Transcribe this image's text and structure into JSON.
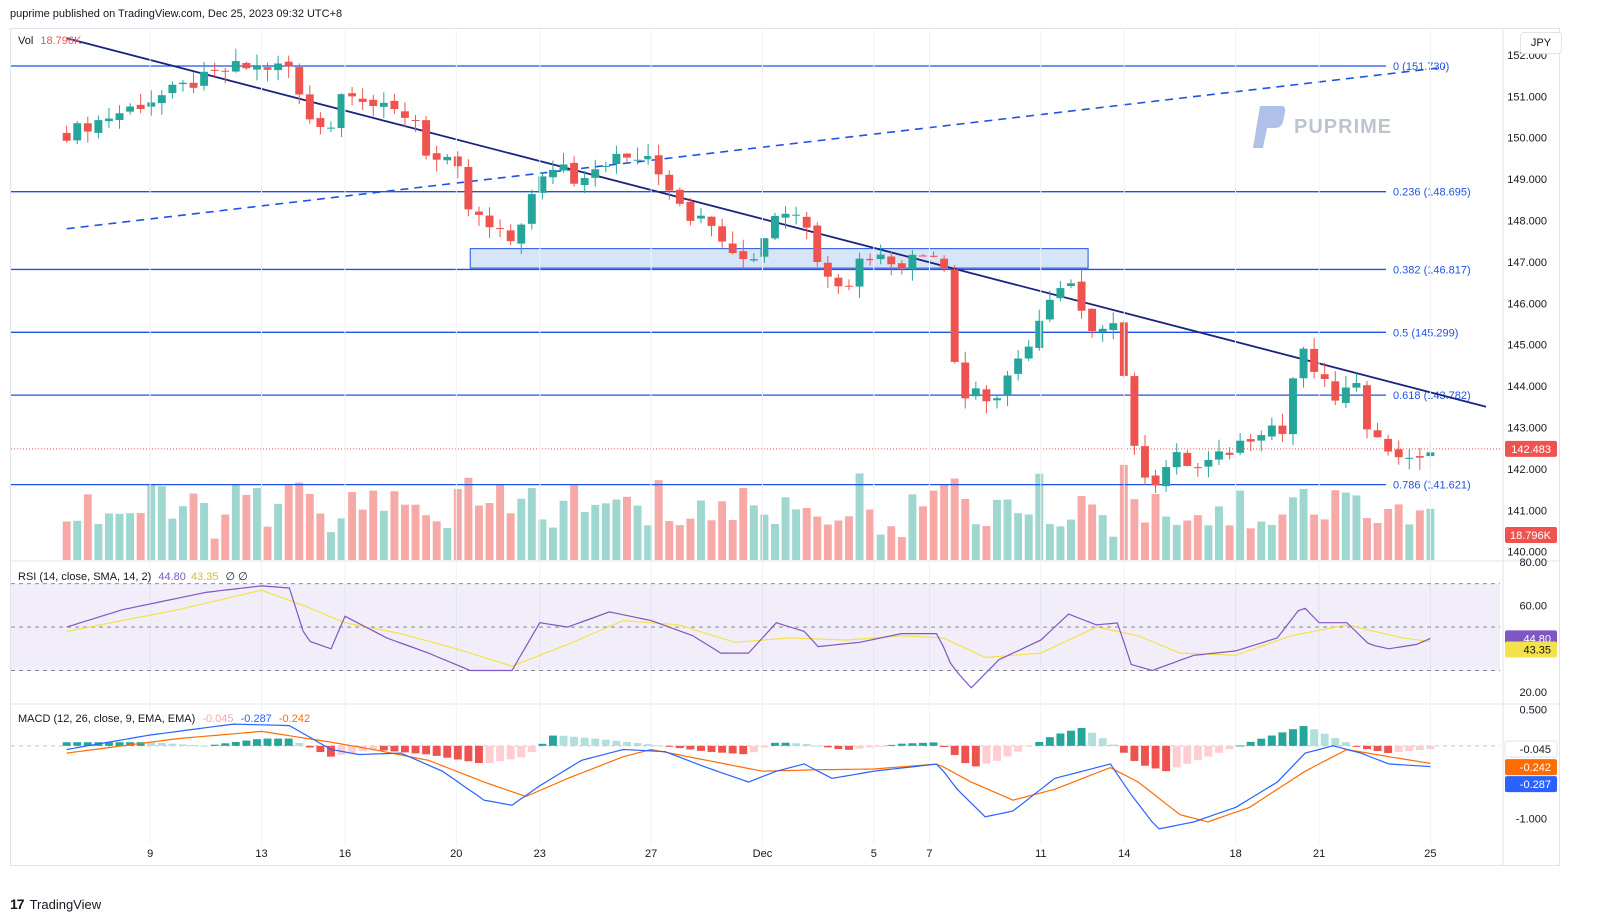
{
  "header": {
    "publisher_text": "puprime published on TradingView.com, Dec 25, 2023 09:32 UTC+8"
  },
  "currency_button": "JPY",
  "watermark": "PUPRIME",
  "footer": {
    "brand": "TradingView"
  },
  "colors": {
    "up": "#26a69a",
    "down": "#ef5350",
    "vol_up": "#9ed7d0",
    "vol_down": "#f7a9a7",
    "fib_line": "#1e53e5",
    "trendline": "#1a237e",
    "rsi": "#7e57c2",
    "rsi_sma": "#f5e14b",
    "macd": "#2962ff",
    "signal": "#ff6d00",
    "zone": "#bcd3f5"
  },
  "chart_data": [
    {
      "type": "candlestick",
      "symbol_currency": "JPY",
      "volume_legend": {
        "label": "Vol",
        "value": "18.796K"
      },
      "y_ticks": [
        "152.000",
        "151.000",
        "150.000",
        "149.000",
        "148.000",
        "147.000",
        "146.000",
        "145.000",
        "144.000",
        "143.000",
        "142.000",
        "141.000",
        "140.000"
      ],
      "ylim": [
        139.8,
        152.6
      ],
      "x_tick_labels": [
        {
          "label": "9",
          "day": 9
        },
        {
          "label": "13",
          "day": 13
        },
        {
          "label": "16",
          "day": 16
        },
        {
          "label": "20",
          "day": 20
        },
        {
          "label": "23",
          "day": 23
        },
        {
          "label": "27",
          "day": 27
        },
        {
          "label": "Dec",
          "day": 31
        },
        {
          "label": "5",
          "day": 35
        },
        {
          "label": "7",
          "day": 37
        },
        {
          "label": "11",
          "day": 41
        },
        {
          "label": "14",
          "day": 44
        },
        {
          "label": "18",
          "day": 48
        },
        {
          "label": "21",
          "day": 51
        },
        {
          "label": "25",
          "day": 55
        }
      ],
      "x_unit": "calendar day (Nov = 1-30, Dec 1 = 31)",
      "close_key_points": [
        {
          "day": 6,
          "close": 150.1
        },
        {
          "day": 12,
          "close": 151.7
        },
        {
          "day": 14,
          "close": 151.7
        },
        {
          "day": 14.6,
          "close": 150.5
        },
        {
          "day": 15.5,
          "close": 150.3
        },
        {
          "day": 16,
          "close": 151.3
        },
        {
          "day": 17.2,
          "close": 150.7
        },
        {
          "day": 18.5,
          "close": 150.5
        },
        {
          "day": 19,
          "close": 149.5
        },
        {
          "day": 20,
          "close": 149.3
        },
        {
          "day": 20.4,
          "close": 148.3
        },
        {
          "day": 21.2,
          "close": 147.8
        },
        {
          "day": 22,
          "close": 147.5
        },
        {
          "day": 22.8,
          "close": 148.7
        },
        {
          "day": 23.7,
          "close": 149.5
        },
        {
          "day": 24.2,
          "close": 149.0
        },
        {
          "day": 25.5,
          "close": 149.5
        },
        {
          "day": 26.8,
          "close": 149.5
        },
        {
          "day": 27.8,
          "close": 148.7
        },
        {
          "day": 28.4,
          "close": 148.1
        },
        {
          "day": 29,
          "close": 148.3
        },
        {
          "day": 29.6,
          "close": 147.3
        },
        {
          "day": 30,
          "close": 147.4
        },
        {
          "day": 30.5,
          "close": 147.1
        },
        {
          "day": 31,
          "close": 147.4
        },
        {
          "day": 31.4,
          "close": 148.2
        },
        {
          "day": 32.5,
          "close": 148.2
        },
        {
          "day": 32.8,
          "close": 147.1
        },
        {
          "day": 33.6,
          "close": 146.6
        },
        {
          "day": 34.1,
          "close": 146.5
        },
        {
          "day": 34.6,
          "close": 147.2
        },
        {
          "day": 36,
          "close": 147.0
        },
        {
          "day": 37.3,
          "close": 147.3
        },
        {
          "day": 37.6,
          "close": 146.8
        },
        {
          "day": 37.8,
          "close": 145.0
        },
        {
          "day": 38.5,
          "close": 143.2
        },
        {
          "day": 38.7,
          "close": 144.1
        },
        {
          "day": 39.2,
          "close": 143.5
        },
        {
          "day": 40,
          "close": 144.3
        },
        {
          "day": 40.8,
          "close": 145.4
        },
        {
          "day": 41.5,
          "close": 146.2
        },
        {
          "day": 42.1,
          "close": 146.4
        },
        {
          "day": 42.6,
          "close": 145.4
        },
        {
          "day": 43.5,
          "close": 145.6
        },
        {
          "day": 43.9,
          "close": 145.3
        },
        {
          "day": 44.1,
          "close": 143.0
        },
        {
          "day": 44.5,
          "close": 142.1
        },
        {
          "day": 45.1,
          "close": 141.7
        },
        {
          "day": 45.8,
          "close": 142.3
        },
        {
          "day": 46.6,
          "close": 142.0
        },
        {
          "day": 47.5,
          "close": 142.3
        },
        {
          "day": 48.5,
          "close": 142.8
        },
        {
          "day": 49.2,
          "close": 143.1
        },
        {
          "day": 49.8,
          "close": 142.8
        },
        {
          "day": 50.1,
          "close": 144.4
        },
        {
          "day": 50.4,
          "close": 144.8
        },
        {
          "day": 51.1,
          "close": 144.1
        },
        {
          "day": 51.5,
          "close": 143.7
        },
        {
          "day": 52.3,
          "close": 144.0
        },
        {
          "day": 52.7,
          "close": 143.1
        },
        {
          "day": 53.2,
          "close": 142.9
        },
        {
          "day": 53.5,
          "close": 142.3
        },
        {
          "day": 54.2,
          "close": 142.4
        },
        {
          "day": 54.6,
          "close": 142.1
        },
        {
          "day": 55,
          "close": 142.48
        }
      ],
      "last_price": "142.483",
      "last_volume": "18.796K",
      "fibonacci": [
        {
          "level": "0",
          "price": 151.73,
          "label": "0 (151.730)"
        },
        {
          "level": "0.236",
          "price": 148.695,
          "label": "0.236 (148.695)"
        },
        {
          "level": "0.382",
          "price": 146.817,
          "label": "0.382 (146.817)"
        },
        {
          "level": "0.5",
          "price": 145.299,
          "label": "0.5 (145.299)"
        },
        {
          "level": "0.618",
          "price": 143.782,
          "label": "0.618 (143.782)"
        },
        {
          "level": "0.786",
          "price": 141.621,
          "label": "0.786 (141.621)"
        }
      ],
      "descending_trendline": [
        {
          "day": 6,
          "price": 152.4
        },
        {
          "day": 57,
          "price": 143.5
        }
      ],
      "dashed_trendline": [
        {
          "day": 6,
          "price": 147.8
        },
        {
          "day": 55.5,
          "price": 151.7
        }
      ],
      "zone": {
        "day_start": 20.5,
        "day_end": 42.7,
        "price_low": 146.85,
        "price_high": 147.32
      }
    },
    {
      "type": "line",
      "name": "RSI",
      "legend": {
        "label": "RSI (14, close, SMA, 14, 2)",
        "rsi": "44.80",
        "sma": "43.35",
        "extra": "∅  ∅"
      },
      "ylim": [
        15,
        80
      ],
      "y_ticks": [
        "80.00",
        "60.00",
        "20.00"
      ],
      "bands": {
        "upper": 70,
        "middle": 50,
        "lower": 30
      },
      "rsi_key_points": [
        {
          "day": 6,
          "v": 50
        },
        {
          "day": 8,
          "v": 58
        },
        {
          "day": 11,
          "v": 66
        },
        {
          "day": 13,
          "v": 69
        },
        {
          "day": 14,
          "v": 68
        },
        {
          "day": 14.6,
          "v": 44
        },
        {
          "day": 15.5,
          "v": 40
        },
        {
          "day": 16,
          "v": 55
        },
        {
          "day": 17.5,
          "v": 45
        },
        {
          "day": 19,
          "v": 38
        },
        {
          "day": 20.5,
          "v": 30
        },
        {
          "day": 22,
          "v": 30
        },
        {
          "day": 23,
          "v": 52
        },
        {
          "day": 24,
          "v": 50
        },
        {
          "day": 25.5,
          "v": 57
        },
        {
          "day": 27,
          "v": 53
        },
        {
          "day": 28.5,
          "v": 46
        },
        {
          "day": 29.5,
          "v": 38
        },
        {
          "day": 30.5,
          "v": 38
        },
        {
          "day": 31.5,
          "v": 52
        },
        {
          "day": 32.5,
          "v": 48
        },
        {
          "day": 33,
          "v": 41
        },
        {
          "day": 34.5,
          "v": 43
        },
        {
          "day": 36,
          "v": 47
        },
        {
          "day": 37.3,
          "v": 47
        },
        {
          "day": 37.8,
          "v": 32
        },
        {
          "day": 38.5,
          "v": 22
        },
        {
          "day": 39.5,
          "v": 35
        },
        {
          "day": 41,
          "v": 44
        },
        {
          "day": 42,
          "v": 56
        },
        {
          "day": 43,
          "v": 51
        },
        {
          "day": 43.8,
          "v": 52
        },
        {
          "day": 44.2,
          "v": 33
        },
        {
          "day": 45,
          "v": 30
        },
        {
          "day": 46.5,
          "v": 37
        },
        {
          "day": 48,
          "v": 39
        },
        {
          "day": 49.5,
          "v": 45
        },
        {
          "day": 50.4,
          "v": 60
        },
        {
          "day": 51,
          "v": 52
        },
        {
          "day": 52,
          "v": 52
        },
        {
          "day": 52.8,
          "v": 42
        },
        {
          "day": 53.5,
          "v": 40
        },
        {
          "day": 54.5,
          "v": 42
        },
        {
          "day": 55,
          "v": 44.8
        }
      ],
      "sma_key_points": [
        {
          "day": 6,
          "v": 48
        },
        {
          "day": 10,
          "v": 58
        },
        {
          "day": 13,
          "v": 67
        },
        {
          "day": 14.5,
          "v": 60
        },
        {
          "day": 16,
          "v": 52
        },
        {
          "day": 18,
          "v": 47
        },
        {
          "day": 20,
          "v": 40
        },
        {
          "day": 22,
          "v": 32
        },
        {
          "day": 24,
          "v": 42
        },
        {
          "day": 26,
          "v": 53
        },
        {
          "day": 28,
          "v": 51
        },
        {
          "day": 30,
          "v": 43
        },
        {
          "day": 32,
          "v": 45
        },
        {
          "day": 34,
          "v": 44
        },
        {
          "day": 36,
          "v": 46
        },
        {
          "day": 37.5,
          "v": 45
        },
        {
          "day": 39,
          "v": 36
        },
        {
          "day": 41,
          "v": 38
        },
        {
          "day": 43,
          "v": 50
        },
        {
          "day": 44.5,
          "v": 46
        },
        {
          "day": 46,
          "v": 38
        },
        {
          "day": 48,
          "v": 37
        },
        {
          "day": 50,
          "v": 46
        },
        {
          "day": 52,
          "v": 51
        },
        {
          "day": 54,
          "v": 45
        },
        {
          "day": 55,
          "v": 43.35
        }
      ]
    },
    {
      "type": "line",
      "name": "MACD",
      "legend": {
        "label": "MACD (12, 26, close, 9, EMA, EMA)",
        "hist": "-0.045",
        "macd": "-0.287",
        "signal": "-0.242"
      },
      "ylim": [
        -1.3,
        0.55
      ],
      "y_ticks": [
        "0.500",
        "-1.000"
      ],
      "macd_key_points": [
        {
          "day": 6,
          "v": -0.05
        },
        {
          "day": 9,
          "v": 0.15
        },
        {
          "day": 12,
          "v": 0.3
        },
        {
          "day": 14,
          "v": 0.28
        },
        {
          "day": 15.5,
          "v": -0.05
        },
        {
          "day": 16.5,
          "v": -0.12
        },
        {
          "day": 18,
          "v": -0.1
        },
        {
          "day": 19.5,
          "v": -0.35
        },
        {
          "day": 21,
          "v": -0.75
        },
        {
          "day": 22,
          "v": -0.82
        },
        {
          "day": 23,
          "v": -0.55
        },
        {
          "day": 24.5,
          "v": -0.2
        },
        {
          "day": 26,
          "v": -0.05
        },
        {
          "day": 27.5,
          "v": -0.08
        },
        {
          "day": 29,
          "v": -0.3
        },
        {
          "day": 30.5,
          "v": -0.5
        },
        {
          "day": 31.5,
          "v": -0.35
        },
        {
          "day": 32.5,
          "v": -0.25
        },
        {
          "day": 33.5,
          "v": -0.45
        },
        {
          "day": 35,
          "v": -0.35
        },
        {
          "day": 37.3,
          "v": -0.25
        },
        {
          "day": 38,
          "v": -0.6
        },
        {
          "day": 39,
          "v": -0.98
        },
        {
          "day": 40,
          "v": -0.9
        },
        {
          "day": 41.5,
          "v": -0.45
        },
        {
          "day": 43.5,
          "v": -0.25
        },
        {
          "day": 44.2,
          "v": -0.65
        },
        {
          "day": 45.2,
          "v": -1.15
        },
        {
          "day": 46.5,
          "v": -1.05
        },
        {
          "day": 48,
          "v": -0.85
        },
        {
          "day": 49.5,
          "v": -0.5
        },
        {
          "day": 50.5,
          "v": -0.1
        },
        {
          "day": 51.5,
          "v": 0.0
        },
        {
          "day": 52.5,
          "v": -0.1
        },
        {
          "day": 53.5,
          "v": -0.25
        },
        {
          "day": 55,
          "v": -0.287
        }
      ],
      "signal_key_points": [
        {
          "day": 6,
          "v": -0.1
        },
        {
          "day": 10,
          "v": 0.1
        },
        {
          "day": 13,
          "v": 0.2
        },
        {
          "day": 15.5,
          "v": 0.05
        },
        {
          "day": 17,
          "v": -0.05
        },
        {
          "day": 19,
          "v": -0.2
        },
        {
          "day": 21,
          "v": -0.5
        },
        {
          "day": 22.5,
          "v": -0.7
        },
        {
          "day": 24,
          "v": -0.45
        },
        {
          "day": 26,
          "v": -0.15
        },
        {
          "day": 27,
          "v": -0.05
        },
        {
          "day": 29,
          "v": -0.2
        },
        {
          "day": 31,
          "v": -0.35
        },
        {
          "day": 33,
          "v": -0.33
        },
        {
          "day": 35,
          "v": -0.32
        },
        {
          "day": 37.3,
          "v": -0.25
        },
        {
          "day": 38.5,
          "v": -0.5
        },
        {
          "day": 40,
          "v": -0.75
        },
        {
          "day": 41.5,
          "v": -0.6
        },
        {
          "day": 43.5,
          "v": -0.3
        },
        {
          "day": 44.5,
          "v": -0.5
        },
        {
          "day": 46,
          "v": -0.95
        },
        {
          "day": 47,
          "v": -1.05
        },
        {
          "day": 48.5,
          "v": -0.85
        },
        {
          "day": 50.5,
          "v": -0.35
        },
        {
          "day": 52,
          "v": -0.05
        },
        {
          "day": 53.5,
          "v": -0.15
        },
        {
          "day": 55,
          "v": -0.242
        }
      ],
      "hist_key_points": [
        {
          "day": 6,
          "v": 0.05
        },
        {
          "day": 9,
          "v": 0.05
        },
        {
          "day": 11,
          "v": 0.0
        },
        {
          "day": 13,
          "v": 0.1
        },
        {
          "day": 14,
          "v": 0.1
        },
        {
          "day": 15.5,
          "v": -0.15
        },
        {
          "day": 17,
          "v": -0.05
        },
        {
          "day": 19,
          "v": -0.12
        },
        {
          "day": 21,
          "v": -0.25
        },
        {
          "day": 22.5,
          "v": -0.15
        },
        {
          "day": 23.5,
          "v": 0.15
        },
        {
          "day": 25,
          "v": 0.1
        },
        {
          "day": 27,
          "v": 0.02
        },
        {
          "day": 29,
          "v": -0.08
        },
        {
          "day": 30.5,
          "v": -0.12
        },
        {
          "day": 31.5,
          "v": 0.05
        },
        {
          "day": 32.5,
          "v": 0.03
        },
        {
          "day": 34,
          "v": -0.06
        },
        {
          "day": 36,
          "v": 0.03
        },
        {
          "day": 37.3,
          "v": 0.05
        },
        {
          "day": 38.5,
          "v": -0.3
        },
        {
          "day": 39.5,
          "v": -0.2
        },
        {
          "day": 41.5,
          "v": 0.15
        },
        {
          "day": 42.5,
          "v": 0.25
        },
        {
          "day": 43.5,
          "v": 0.05
        },
        {
          "day": 44.5,
          "v": -0.25
        },
        {
          "day": 45.5,
          "v": -0.35
        },
        {
          "day": 47,
          "v": -0.15
        },
        {
          "day": 48.5,
          "v": 0.05
        },
        {
          "day": 50.5,
          "v": 0.28
        },
        {
          "day": 51.5,
          "v": 0.12
        },
        {
          "day": 52.5,
          "v": -0.03
        },
        {
          "day": 53.5,
          "v": -0.1
        },
        {
          "day": 55,
          "v": -0.045
        }
      ]
    }
  ]
}
